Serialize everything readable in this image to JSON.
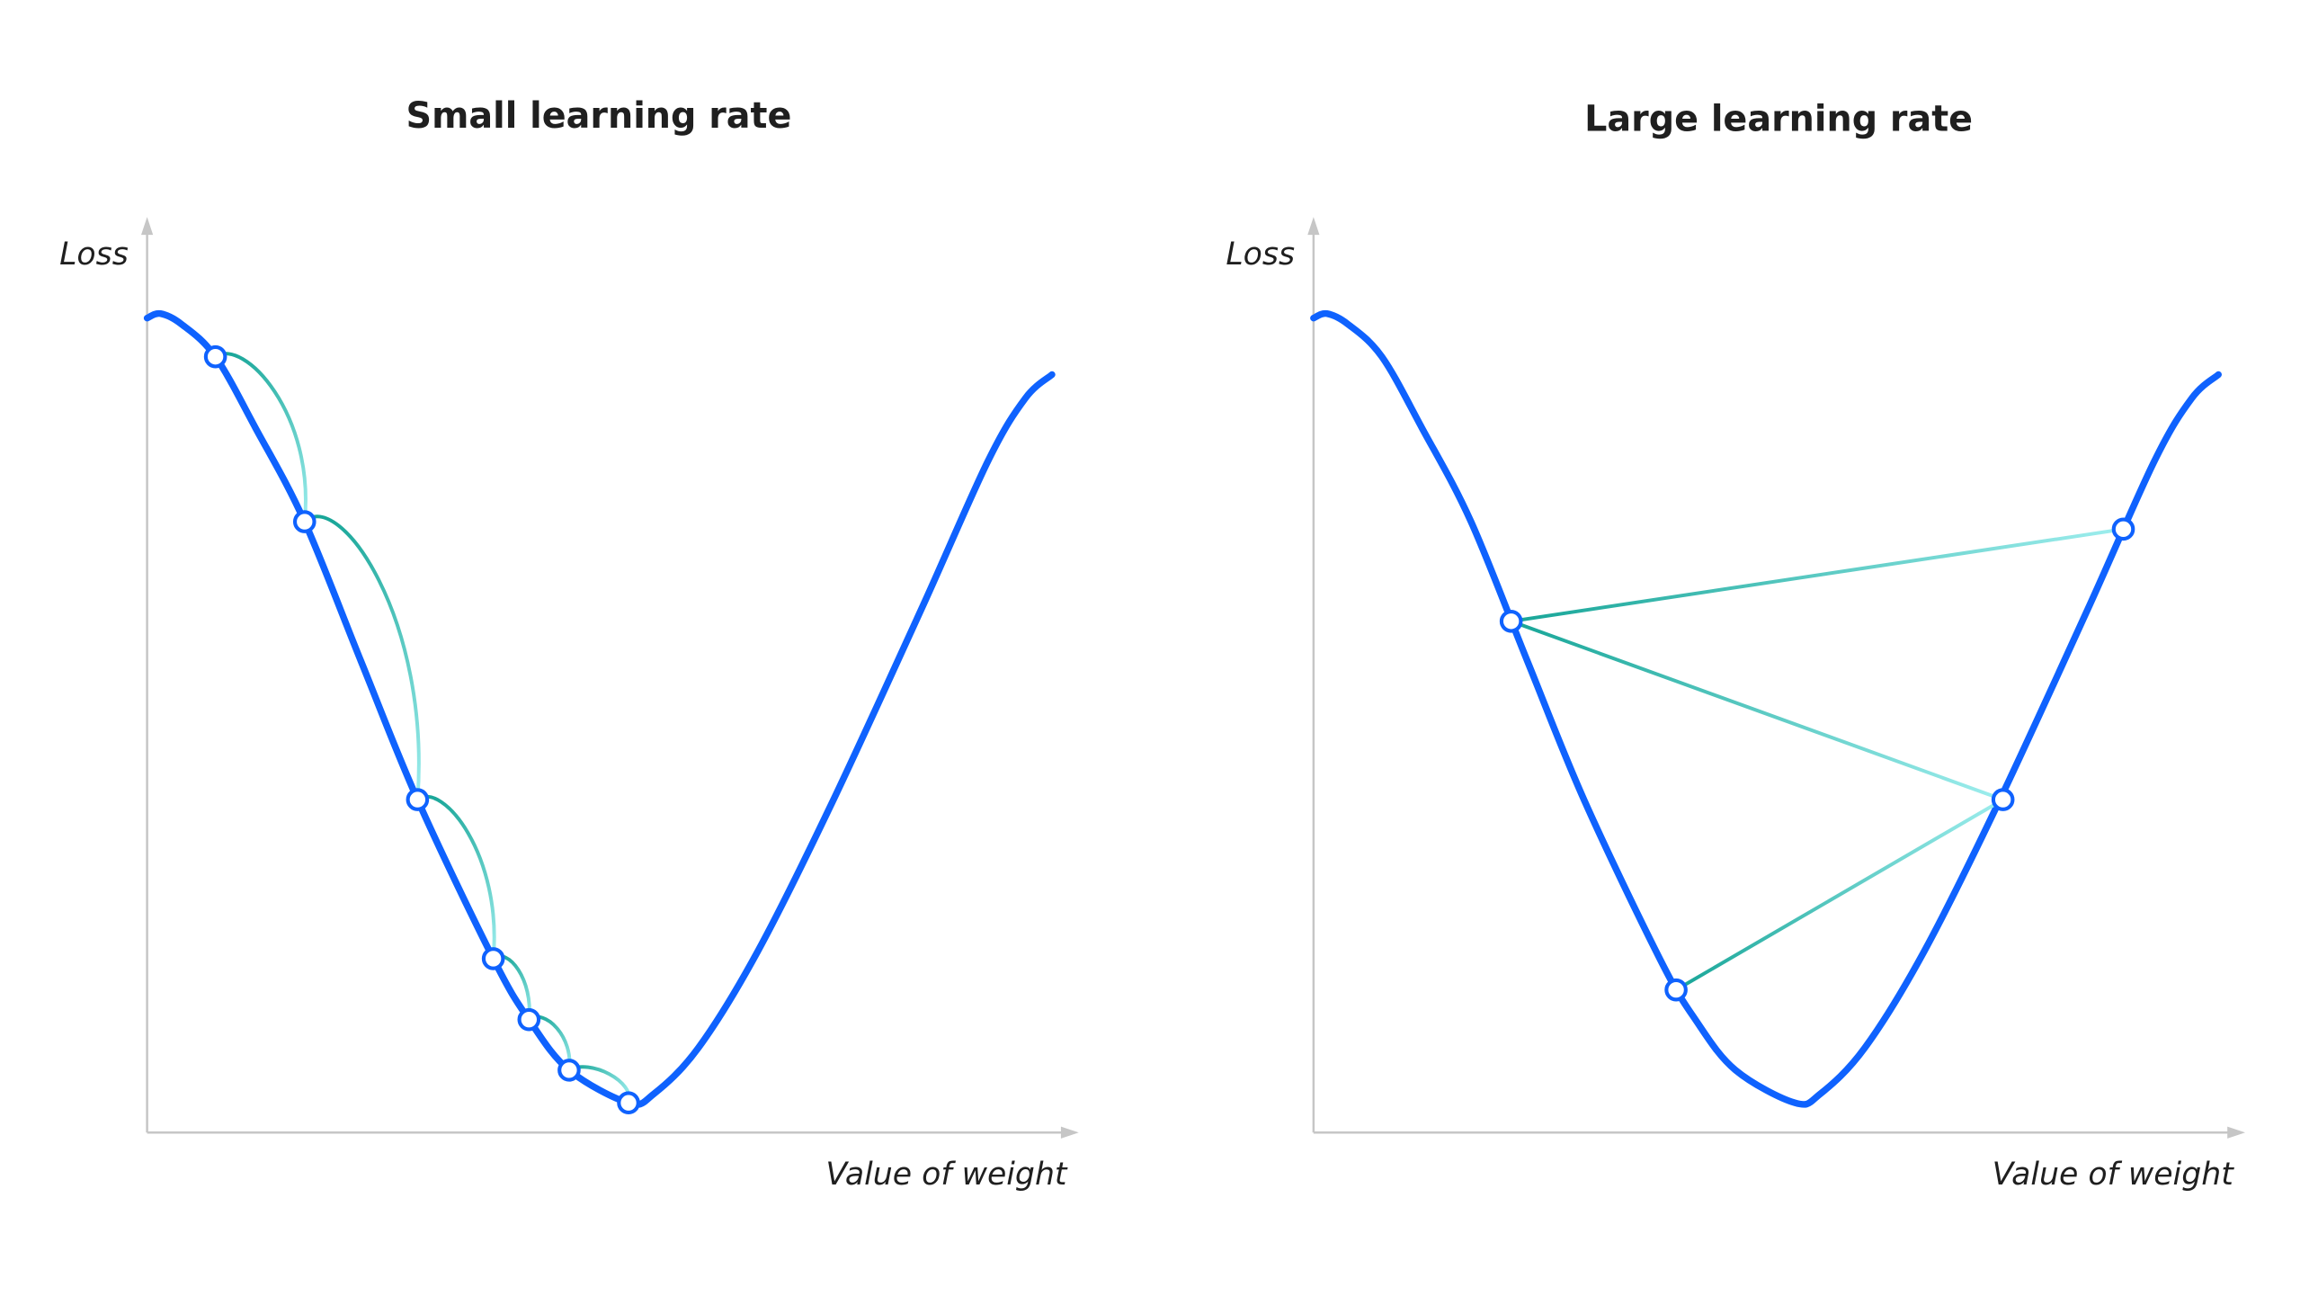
{
  "panels": [
    {
      "title": "Small learning rate",
      "ylabel": "Loss",
      "xlabel": "Value of weight"
    },
    {
      "title": "Large learning rate",
      "ylabel": "Loss",
      "xlabel": "Value of weight"
    }
  ],
  "colors": {
    "curve": "#0f62fe",
    "step_dark": "#17a597",
    "step_light": "#9eeeee",
    "axis": "#c6c6c6"
  }
}
